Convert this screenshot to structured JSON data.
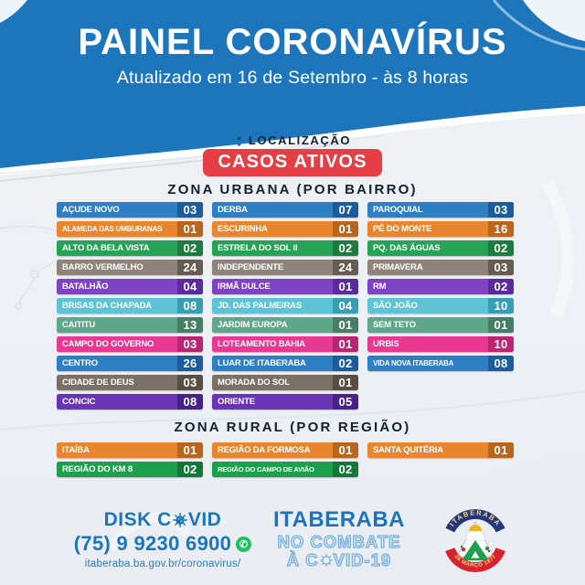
{
  "header": {
    "title": "PAINEL CORONAVÍRUS",
    "subtitle": "Atualizado em 16 de Setembro - às 8 horas"
  },
  "intro": {
    "location": "LOCALIZAÇÃO",
    "badge": "CASOS ATIVOS"
  },
  "icons": {
    "whatsapp": "✆"
  },
  "colors": {
    "header_blue": "#1d76bc",
    "badge_red": "#e63e45",
    "heading_dark": "#13202e",
    "footer_blue": "#1c75bc",
    "whatsapp_green": "#1ec15e"
  },
  "urban": {
    "heading": "ZONA URBANA (POR BAIRRO)",
    "col1": [
      {
        "label": "AÇUDE NOVO",
        "value": "03",
        "bg": "#2e7ec3",
        "num": "#1a5c9c"
      },
      {
        "label": "ALAMEDA DAS UMBURANAS",
        "value": "01",
        "bg": "#e8862f",
        "num": "#b9651c"
      },
      {
        "label": "ALTO DA BELA VISTA",
        "value": "02",
        "bg": "#27a355",
        "num": "#1b7c3e"
      },
      {
        "label": "BARRO VERMELHO",
        "value": "24",
        "bg": "#8f847b",
        "num": "#665c53"
      },
      {
        "label": "BATALHÃO",
        "value": "04",
        "bg": "#7d43c4",
        "num": "#5a2b9e"
      },
      {
        "label": "BRISAS DA CHAPADA",
        "value": "08",
        "bg": "#5ec3d5",
        "num": "#379fb4"
      },
      {
        "label": "CAITITU",
        "value": "13",
        "bg": "#5fa78a",
        "num": "#447f66"
      },
      {
        "label": "CAMPO DO GOVERNO",
        "value": "03",
        "bg": "#e73991",
        "num": "#ba2470"
      },
      {
        "label": "CENTRO",
        "value": "26",
        "bg": "#2e7ec3",
        "num": "#1a5c9c"
      },
      {
        "label": "CIDADE DE DEUS",
        "value": "03",
        "bg": "#7b7066",
        "num": "#584e45"
      },
      {
        "label": "CONCIC",
        "value": "08",
        "bg": "#6a34b6",
        "num": "#482089"
      }
    ],
    "col2": [
      {
        "label": "DERBA",
        "value": "07",
        "bg": "#2e7ec3",
        "num": "#1a5c9c"
      },
      {
        "label": "ESCURINHA",
        "value": "01",
        "bg": "#e8862f",
        "num": "#b9651c"
      },
      {
        "label": "ESTRELA DO SOL II",
        "value": "02",
        "bg": "#27a355",
        "num": "#1b7c3e"
      },
      {
        "label": "INDEPENDENTE",
        "value": "24",
        "bg": "#8f847b",
        "num": "#665c53"
      },
      {
        "label": "IRMÃ DULCE",
        "value": "01",
        "bg": "#7d43c4",
        "num": "#5a2b9e"
      },
      {
        "label": "JD. DAS PALMEIRAS",
        "value": "04",
        "bg": "#5ec3d5",
        "num": "#379fb4"
      },
      {
        "label": "JARDIM EUROPA",
        "value": "01",
        "bg": "#5fa78a",
        "num": "#447f66"
      },
      {
        "label": "LOTEAMENTO BAHIA",
        "value": "01",
        "bg": "#e73991",
        "num": "#ba2470"
      },
      {
        "label": "LUAR DE ITABERABA",
        "value": "02",
        "bg": "#2e7ec3",
        "num": "#1a5c9c"
      },
      {
        "label": "MORADA DO SOL",
        "value": "01",
        "bg": "#7b7066",
        "num": "#584e45"
      },
      {
        "label": "ORIENTE",
        "value": "05",
        "bg": "#6a34b6",
        "num": "#482089"
      }
    ],
    "col3": [
      {
        "label": "PAROQUIAL",
        "value": "03",
        "bg": "#2e7ec3",
        "num": "#1a5c9c"
      },
      {
        "label": "PÉ DO MONTE",
        "value": "16",
        "bg": "#e8862f",
        "num": "#b9651c"
      },
      {
        "label": "PQ. DAS ÁGUAS",
        "value": "02",
        "bg": "#27a355",
        "num": "#1b7c3e"
      },
      {
        "label": "PRIMAVERA",
        "value": "03",
        "bg": "#8f847b",
        "num": "#665c53"
      },
      {
        "label": "RM",
        "value": "02",
        "bg": "#7d43c4",
        "num": "#5a2b9e"
      },
      {
        "label": "SÃO JOÃO",
        "value": "10",
        "bg": "#5ec3d5",
        "num": "#379fb4"
      },
      {
        "label": "SEM TETO",
        "value": "01",
        "bg": "#5fa78a",
        "num": "#447f66"
      },
      {
        "label": "URBIS",
        "value": "10",
        "bg": "#e73991",
        "num": "#ba2470"
      },
      {
        "label": "VIDA NOVA ITABERABA",
        "value": "08",
        "bg": "#2e7ec3",
        "num": "#1a5c9c"
      }
    ]
  },
  "rural": {
    "heading": "ZONA RURAL (POR REGIÃO)",
    "col1": [
      {
        "label": "ITAÍBA",
        "value": "01",
        "bg": "#e8862f",
        "num": "#b9651c"
      },
      {
        "label": "REGIÃO DO KM 8",
        "value": "02",
        "bg": "#1da04b",
        "num": "#137837"
      }
    ],
    "col2": [
      {
        "label": "REGIÃO DA FORMOSA",
        "value": "01",
        "bg": "#e8862f",
        "num": "#b9651c"
      },
      {
        "label": "REGIÃO DO CAMPO DE AVIÃO",
        "value": "02",
        "bg": "#1da04b",
        "num": "#137837"
      }
    ],
    "col3": [
      {
        "label": "SANTA QUITÉRIA",
        "value": "01",
        "bg": "#e8862f",
        "num": "#b9651c"
      }
    ]
  },
  "footer": {
    "disk": {
      "line1_pre": "DISK C",
      "line1_post": "VID",
      "phone": "(75) 9 9230 6900",
      "url": "itaberaba.ba.gov.br/coronavirus/"
    },
    "campaign": {
      "line1": "ITABERABA",
      "line2": "NO COMBATE",
      "line3_pre": "À C",
      "line3_post": "VID-19"
    },
    "seal": {
      "top": "ITABERABA",
      "bottom": "26 MARÇO 1877"
    }
  },
  "chart_data": {
    "type": "table",
    "title": "CASOS ATIVOS",
    "subtitle": "Atualizado em 16 de Setembro - às 8 horas",
    "groups": [
      {
        "name": "ZONA URBANA (POR BAIRRO)",
        "items": [
          {
            "label": "AÇUDE NOVO",
            "value": 3
          },
          {
            "label": "ALAMEDA DAS UMBURANAS",
            "value": 1
          },
          {
            "label": "ALTO DA BELA VISTA",
            "value": 2
          },
          {
            "label": "BARRO VERMELHO",
            "value": 24
          },
          {
            "label": "BATALHÃO",
            "value": 4
          },
          {
            "label": "BRISAS DA CHAPADA",
            "value": 8
          },
          {
            "label": "CAITITU",
            "value": 13
          },
          {
            "label": "CAMPO DO GOVERNO",
            "value": 3
          },
          {
            "label": "CENTRO",
            "value": 26
          },
          {
            "label": "CIDADE DE DEUS",
            "value": 3
          },
          {
            "label": "CONCIC",
            "value": 8
          },
          {
            "label": "DERBA",
            "value": 7
          },
          {
            "label": "ESCURINHA",
            "value": 1
          },
          {
            "label": "ESTRELA DO SOL II",
            "value": 2
          },
          {
            "label": "INDEPENDENTE",
            "value": 24
          },
          {
            "label": "IRMÃ DULCE",
            "value": 1
          },
          {
            "label": "JD. DAS PALMEIRAS",
            "value": 4
          },
          {
            "label": "JARDIM EUROPA",
            "value": 1
          },
          {
            "label": "LOTEAMENTO BAHIA",
            "value": 1
          },
          {
            "label": "LUAR DE ITABERABA",
            "value": 2
          },
          {
            "label": "MORADA DO SOL",
            "value": 1
          },
          {
            "label": "ORIENTE",
            "value": 5
          },
          {
            "label": "PAROQUIAL",
            "value": 3
          },
          {
            "label": "PÉ DO MONTE",
            "value": 16
          },
          {
            "label": "PQ. DAS ÁGUAS",
            "value": 2
          },
          {
            "label": "PRIMAVERA",
            "value": 3
          },
          {
            "label": "RM",
            "value": 2
          },
          {
            "label": "SÃO JOÃO",
            "value": 10
          },
          {
            "label": "SEM TETO",
            "value": 1
          },
          {
            "label": "URBIS",
            "value": 10
          },
          {
            "label": "VIDA NOVA ITABERABA",
            "value": 8
          }
        ]
      },
      {
        "name": "ZONA RURAL (POR REGIÃO)",
        "items": [
          {
            "label": "ITAÍBA",
            "value": 1
          },
          {
            "label": "REGIÃO DO KM 8",
            "value": 2
          },
          {
            "label": "REGIÃO DA FORMOSA",
            "value": 1
          },
          {
            "label": "REGIÃO DO CAMPO DE AVIÃO",
            "value": 2
          },
          {
            "label": "SANTA QUITÉRIA",
            "value": 1
          }
        ]
      }
    ]
  }
}
